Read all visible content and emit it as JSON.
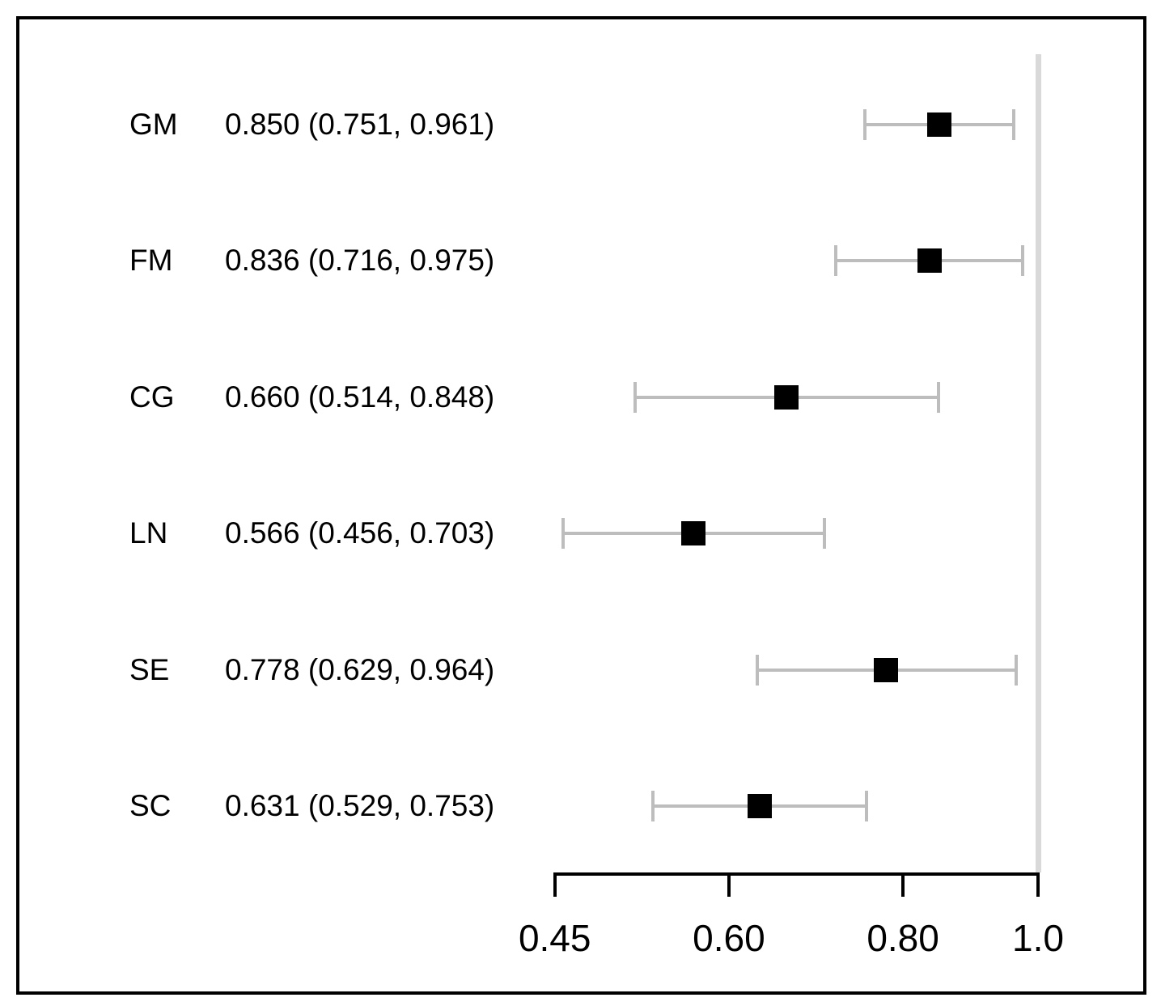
{
  "figure": {
    "description": "Forest plot of six estimates with 95% confidence intervals against a reference line at 1.0"
  },
  "chart_data": {
    "type": "forest",
    "rows": [
      {
        "label": "GM",
        "text": "0.850 (0.751, 0.961)",
        "estimate": 0.85,
        "lower": 0.751,
        "upper": 0.961
      },
      {
        "label": "FM",
        "text": "0.836 (0.716, 0.975)",
        "estimate": 0.836,
        "lower": 0.716,
        "upper": 0.975
      },
      {
        "label": "CG",
        "text": "0.660 (0.514, 0.848)",
        "estimate": 0.66,
        "lower": 0.514,
        "upper": 0.848
      },
      {
        "label": "LN",
        "text": "0.566 (0.456, 0.703)",
        "estimate": 0.566,
        "lower": 0.456,
        "upper": 0.703
      },
      {
        "label": "SE",
        "text": "0.778 (0.629, 0.964)",
        "estimate": 0.778,
        "lower": 0.629,
        "upper": 0.964
      },
      {
        "label": "SC",
        "text": "0.631 (0.529, 0.753)",
        "estimate": 0.631,
        "lower": 0.529,
        "upper": 0.753
      }
    ],
    "x_axis": {
      "scale": "log",
      "ticks": [
        0.45,
        0.6,
        0.8,
        1.0
      ],
      "tick_labels": [
        "0.45",
        "0.60",
        "0.80",
        "1.0"
      ],
      "range": [
        0.45,
        1.0
      ]
    },
    "reference_line": 1.0,
    "legend": "none",
    "grid": "off",
    "colors": {
      "marker": "#000000",
      "whisker": "#bdbdbd",
      "reference_line": "#d9d9d9",
      "axis": "#000000",
      "text": "#000000",
      "frame": "#000000"
    }
  }
}
